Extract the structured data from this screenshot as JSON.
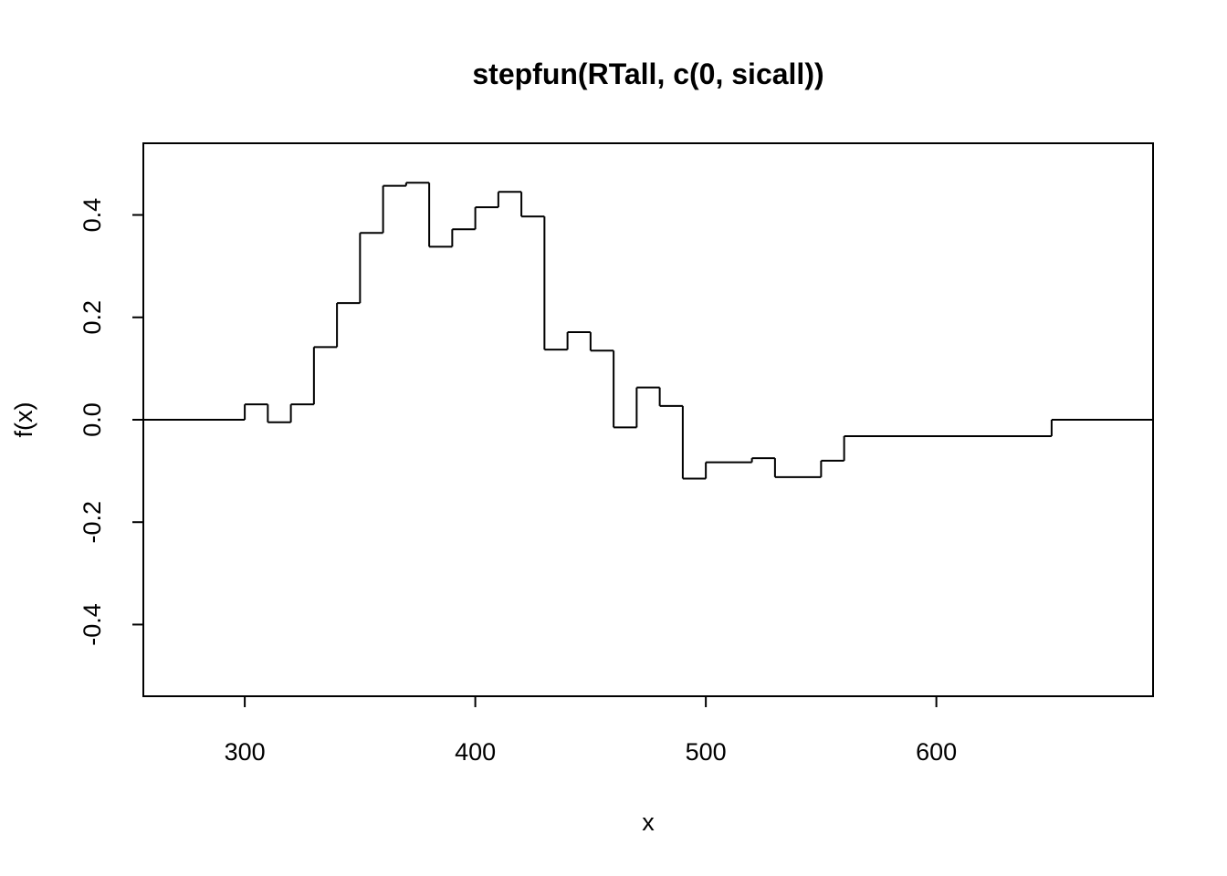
{
  "chart_data": {
    "type": "line",
    "title": "stepfun(RTall, c(0, sicall))",
    "xlabel": "x",
    "ylabel": "f(x)",
    "xlim": [
      256,
      694
    ],
    "ylim": [
      -0.54,
      0.54
    ],
    "x_ticks": [
      300,
      400,
      500,
      600
    ],
    "x_tick_labels": [
      "300",
      "400",
      "500",
      "600"
    ],
    "y_ticks": [
      -0.4,
      -0.2,
      0.0,
      0.2,
      0.4
    ],
    "y_tick_labels": [
      "-0.4",
      "-0.2",
      "0.0",
      "0.2",
      "0.4"
    ],
    "grid": false,
    "series": [
      {
        "step_type": "step-after",
        "x_start": 256,
        "x_end": 694,
        "knots": [
          300,
          310,
          320,
          330,
          340,
          350,
          360,
          370,
          380,
          390,
          400,
          410,
          420,
          430,
          440,
          450,
          460,
          470,
          480,
          490,
          500,
          520,
          530,
          550,
          560,
          650
        ],
        "values": [
          0.0,
          0.03,
          -0.005,
          0.03,
          0.142,
          0.228,
          0.365,
          0.457,
          0.463,
          0.338,
          0.372,
          0.415,
          0.445,
          0.397,
          0.137,
          0.171,
          0.135,
          -0.015,
          0.063,
          0.027,
          -0.115,
          -0.083,
          -0.075,
          -0.112,
          -0.08,
          -0.032,
          0.0
        ]
      }
    ]
  }
}
